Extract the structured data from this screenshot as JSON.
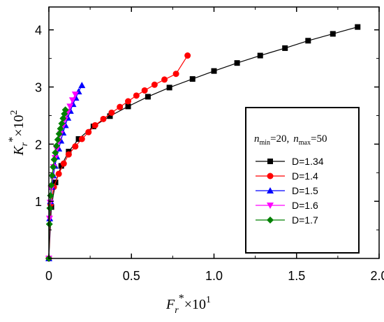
{
  "chart_data": {
    "type": "line",
    "xlim": [
      0,
      2.0
    ],
    "ylim": [
      0,
      4.4
    ],
    "xticks": [
      "0",
      "0.5",
      "1.0",
      "1.5",
      "2.0"
    ],
    "yticks": [
      "1",
      "2",
      "3",
      "4"
    ],
    "xlabel": {
      "base": "F",
      "sub": "r",
      "sup": "*",
      "mult": "×10",
      "exp": "1"
    },
    "ylabel": {
      "base": "K",
      "sub": "r",
      "sup": "*",
      "mult": "×10",
      "exp": "2"
    },
    "legend_title": {
      "n": "n",
      "min_sub": "min",
      "min_val": "=20,",
      "max_sub": "max",
      "max_val": "=50"
    },
    "legend_position": "right",
    "grid": false,
    "series": [
      {
        "name": "D=1.34",
        "color": "#000000",
        "marker": "square",
        "x": [
          0.0,
          0.015,
          0.04,
          0.075,
          0.12,
          0.18,
          0.27,
          0.37,
          0.48,
          0.6,
          0.73,
          0.87,
          1.0,
          1.14,
          1.28,
          1.43,
          1.57,
          1.72,
          1.87
        ],
        "y": [
          0.0,
          0.9,
          1.33,
          1.62,
          1.87,
          2.09,
          2.31,
          2.49,
          2.66,
          2.83,
          2.99,
          3.14,
          3.28,
          3.42,
          3.55,
          3.68,
          3.81,
          3.93,
          4.05
        ]
      },
      {
        "name": "D=1.4",
        "color": "#ff0000",
        "marker": "circle",
        "x": [
          0.0,
          0.01,
          0.03,
          0.06,
          0.09,
          0.12,
          0.16,
          0.2,
          0.24,
          0.28,
          0.33,
          0.38,
          0.43,
          0.48,
          0.53,
          0.58,
          0.64,
          0.7,
          0.77,
          0.84
        ],
        "y": [
          0.0,
          0.95,
          1.25,
          1.48,
          1.66,
          1.82,
          1.96,
          2.09,
          2.21,
          2.33,
          2.44,
          2.55,
          2.65,
          2.75,
          2.85,
          2.94,
          3.04,
          3.13,
          3.23,
          3.55
        ]
      },
      {
        "name": "D=1.5",
        "color": "#0000ff",
        "marker": "triangle-up",
        "x": [
          0.0,
          0.005,
          0.01,
          0.018,
          0.027,
          0.037,
          0.048,
          0.06,
          0.073,
          0.086,
          0.1,
          0.115,
          0.13,
          0.146,
          0.163,
          0.18,
          0.2
        ],
        "y": [
          0.0,
          0.7,
          1.0,
          1.25,
          1.45,
          1.62,
          1.78,
          1.92,
          2.06,
          2.2,
          2.33,
          2.46,
          2.58,
          2.7,
          2.81,
          2.92,
          3.03
        ]
      },
      {
        "name": "D=1.6",
        "color": "#ff00ff",
        "marker": "triangle-down",
        "x": [
          0.0,
          0.004,
          0.008,
          0.014,
          0.021,
          0.029,
          0.038,
          0.048,
          0.059,
          0.071,
          0.084,
          0.098,
          0.113,
          0.128,
          0.143,
          0.16
        ],
        "y": [
          0.0,
          0.7,
          0.98,
          1.22,
          1.42,
          1.6,
          1.76,
          1.91,
          2.05,
          2.18,
          2.31,
          2.43,
          2.55,
          2.66,
          2.77,
          2.87
        ]
      },
      {
        "name": "D=1.7",
        "color": "#008000",
        "marker": "diamond",
        "x": [
          0.0,
          0.003,
          0.006,
          0.01,
          0.015,
          0.02,
          0.026,
          0.032,
          0.039,
          0.046,
          0.054,
          0.062,
          0.07,
          0.078,
          0.086,
          0.094,
          0.1
        ],
        "y": [
          0.0,
          0.6,
          0.88,
          1.1,
          1.28,
          1.45,
          1.6,
          1.73,
          1.85,
          1.97,
          2.08,
          2.18,
          2.27,
          2.36,
          2.45,
          2.53,
          2.6
        ]
      }
    ]
  }
}
